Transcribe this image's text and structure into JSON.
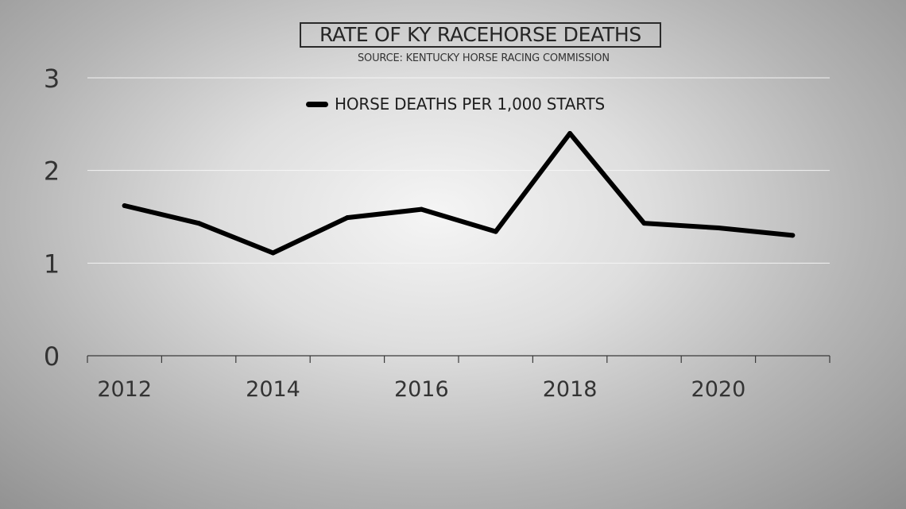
{
  "chart_data": {
    "type": "line",
    "title": "RATE OF KY RACEHORSE DEATHS",
    "subtitle": "SOURCE: KENTUCKY HORSE RACING COMMISSION",
    "xlabel": "",
    "ylabel": "",
    "x": [
      2012,
      2013,
      2014,
      2015,
      2016,
      2017,
      2018,
      2019,
      2020,
      2021
    ],
    "x_ticks": [
      "2012",
      "2014",
      "2016",
      "2018",
      "2020"
    ],
    "x_tick_values": [
      2012,
      2014,
      2016,
      2018,
      2020
    ],
    "xlim": [
      2011.5,
      2021.5
    ],
    "y_ticks": [
      "0",
      "1",
      "2",
      "3"
    ],
    "y_tick_values": [
      0,
      1,
      2,
      3
    ],
    "ylim": [
      0,
      3
    ],
    "series": [
      {
        "name": "HORSE DEATHS PER 1,000 STARTS",
        "color": "#000000",
        "values": [
          1.62,
          1.43,
          1.11,
          1.49,
          1.58,
          1.34,
          2.4,
          1.43,
          1.38,
          1.3
        ]
      }
    ],
    "grid": true,
    "legend_position": "top-center"
  }
}
